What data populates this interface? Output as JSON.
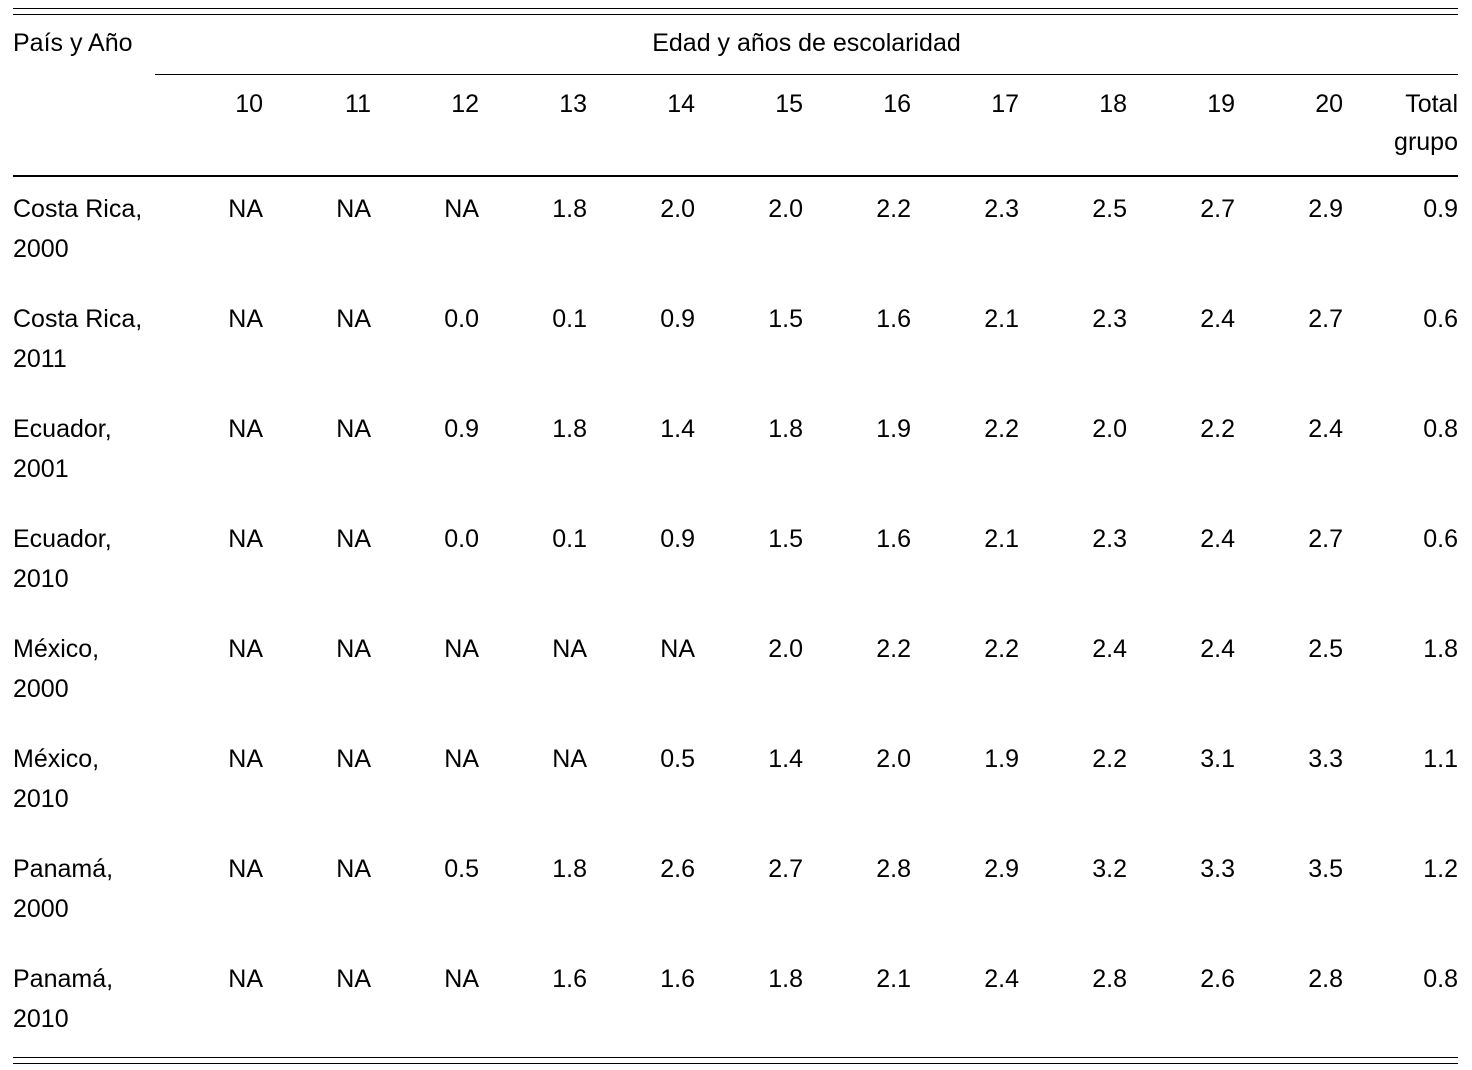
{
  "table": {
    "corner_header": "País y Año",
    "group_header": "Edad y años de escolaridad",
    "columns": [
      "10",
      "11",
      "12",
      "13",
      "14",
      "15",
      "16",
      "17",
      "18",
      "19",
      "20",
      "Total\ngrupo"
    ],
    "rows": [
      {
        "country": "Costa Rica,",
        "year": "2000",
        "values": [
          "NA",
          "NA",
          "NA",
          "1.8",
          "2.0",
          "2.0",
          "2.2",
          "2.3",
          "2.5",
          "2.7",
          "2.9",
          "0.9"
        ]
      },
      {
        "country": "Costa Rica,",
        "year": "2011",
        "values": [
          "NA",
          "NA",
          "0.0",
          "0.1",
          "0.9",
          "1.5",
          "1.6",
          "2.1",
          "2.3",
          "2.4",
          "2.7",
          "0.6"
        ]
      },
      {
        "country": "Ecuador,",
        "year": "2001",
        "values": [
          "NA",
          "NA",
          "0.9",
          "1.8",
          "1.4",
          "1.8",
          "1.9",
          "2.2",
          "2.0",
          "2.2",
          "2.4",
          "0.8"
        ]
      },
      {
        "country": "Ecuador,",
        "year": "2010",
        "values": [
          "NA",
          "NA",
          "0.0",
          "0.1",
          "0.9",
          "1.5",
          "1.6",
          "2.1",
          "2.3",
          "2.4",
          "2.7",
          "0.6"
        ]
      },
      {
        "country": "México,",
        "year": "2000",
        "values": [
          "NA",
          "NA",
          "NA",
          "NA",
          "NA",
          "2.0",
          "2.2",
          "2.2",
          "2.4",
          "2.4",
          "2.5",
          "1.8"
        ]
      },
      {
        "country": "México,",
        "year": "2010",
        "values": [
          "NA",
          "NA",
          "NA",
          "NA",
          "0.5",
          "1.4",
          "2.0",
          "1.9",
          "2.2",
          "3.1",
          "3.3",
          "1.1"
        ]
      },
      {
        "country": "Panamá,",
        "year": "2000",
        "values": [
          "NA",
          "NA",
          "0.5",
          "1.8",
          "2.6",
          "2.7",
          "2.8",
          "2.9",
          "3.2",
          "3.3",
          "3.5",
          "1.2"
        ]
      },
      {
        "country": "Panamá,",
        "year": "2010",
        "values": [
          "NA",
          "NA",
          "NA",
          "1.6",
          "1.6",
          "1.8",
          "2.1",
          "2.4",
          "2.8",
          "2.6",
          "2.8",
          "0.8"
        ]
      }
    ]
  },
  "colors": {
    "background": "#ffffff",
    "text": "#000000",
    "rule": "#000000"
  }
}
